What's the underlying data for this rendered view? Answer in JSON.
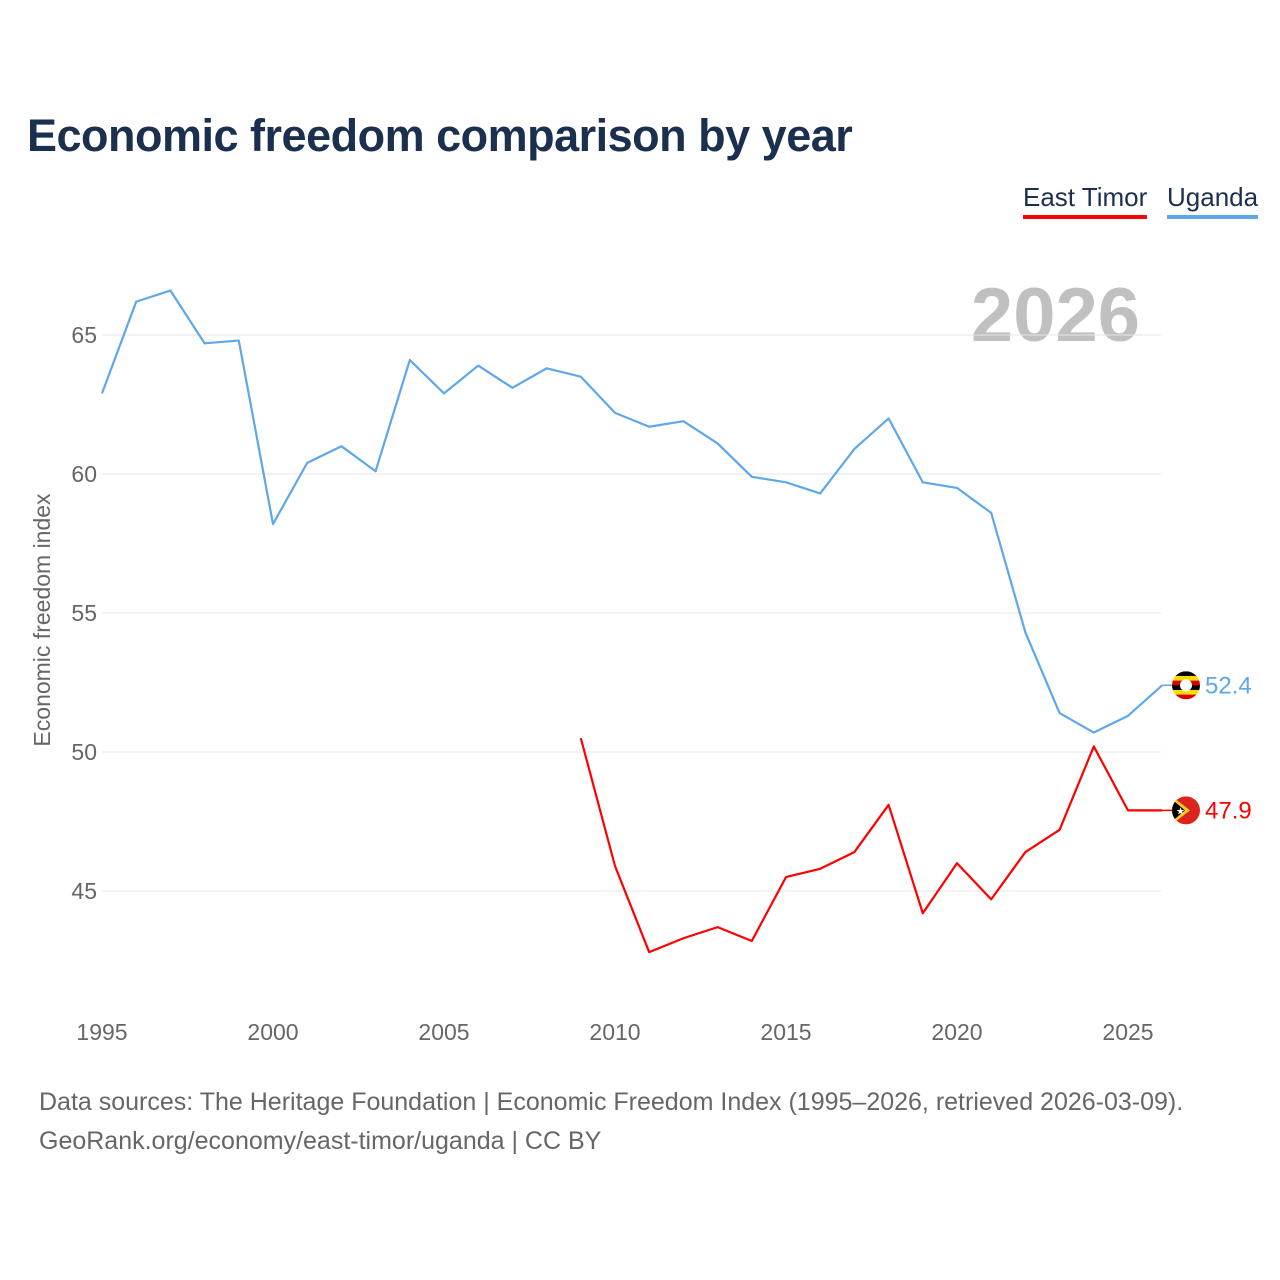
{
  "chart_data": {
    "type": "line",
    "title": "Economic freedom comparison by year",
    "ylabel": "Economic freedom index",
    "xlabel": "",
    "xlim": [
      1995,
      2026
    ],
    "ylim": [
      40.8,
      67.5
    ],
    "xticks": [
      1995,
      2000,
      2005,
      2010,
      2015,
      2020,
      2025
    ],
    "yticks": [
      45,
      50,
      55,
      60,
      65
    ],
    "grid": true,
    "legend_position": "top-right",
    "year_watermark": "2026",
    "series": [
      {
        "name": "East Timor",
        "color": "#ff0000",
        "end_label": "47.9",
        "x": [
          2009,
          2010,
          2011,
          2012,
          2013,
          2014,
          2015,
          2016,
          2017,
          2018,
          2019,
          2020,
          2021,
          2022,
          2023,
          2024,
          2025,
          2026
        ],
        "values": [
          50.5,
          45.9,
          42.8,
          43.3,
          43.7,
          43.2,
          45.5,
          45.8,
          46.4,
          48.1,
          44.2,
          46.0,
          44.7,
          46.4,
          47.2,
          50.2,
          47.9,
          47.9
        ]
      },
      {
        "name": "Uganda",
        "color": "#5ea7e8",
        "end_label": "52.4",
        "x": [
          1995,
          1996,
          1997,
          1998,
          1999,
          2000,
          2001,
          2002,
          2003,
          2004,
          2005,
          2006,
          2007,
          2008,
          2009,
          2010,
          2011,
          2012,
          2013,
          2014,
          2015,
          2016,
          2017,
          2018,
          2019,
          2020,
          2021,
          2022,
          2023,
          2024,
          2025,
          2026
        ],
        "values": [
          62.9,
          66.2,
          66.6,
          64.7,
          64.8,
          58.2,
          60.4,
          61.0,
          60.1,
          64.1,
          62.9,
          63.9,
          63.1,
          63.8,
          63.5,
          62.2,
          61.7,
          61.9,
          61.1,
          59.9,
          59.7,
          59.3,
          60.9,
          62.0,
          59.7,
          59.5,
          58.6,
          54.3,
          51.4,
          50.7,
          51.3,
          52.4
        ]
      }
    ]
  },
  "footer": {
    "line1": "Data sources: The Heritage Foundation | Economic Freedom Index (1995–2026, retrieved 2026-03-09).",
    "line2": "GeoRank.org/economy/east-timor/uganda | CC BY"
  }
}
